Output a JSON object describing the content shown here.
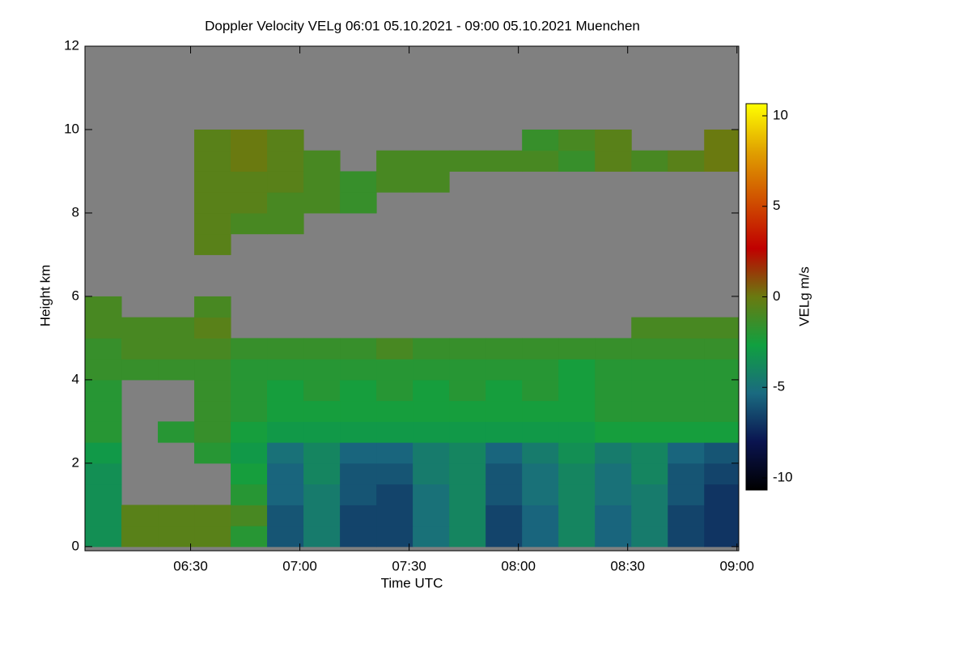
{
  "chart_data": {
    "type": "heatmap",
    "title": "Doppler Velocity VELg   06:01 05.10.2021 - 09:00 05.10.2021 Muenchen",
    "x_label": "Time UTC",
    "y_label": "Height km",
    "colorbar_label": "VELg m/s",
    "x": [
      366,
      376,
      386,
      396,
      406,
      416,
      426,
      436,
      446,
      456,
      466,
      476,
      486,
      496,
      506,
      516,
      526,
      536
    ],
    "y": [
      0.25,
      0.75,
      1.25,
      1.75,
      2.25,
      2.75,
      3.25,
      3.75,
      4.25,
      4.75,
      5.25,
      5.75,
      6.25,
      6.75,
      7.25,
      7.75,
      8.25,
      8.75,
      9.25,
      9.75,
      10.25,
      10.75,
      11.25,
      11.75
    ],
    "values": [
      [
        -3.5,
        -0.5,
        -0.5,
        -0.5,
        -2,
        -6,
        -4.5,
        -6.5,
        -6.5,
        -5,
        -4,
        -6.5,
        -5.5,
        -4,
        -5.5,
        -4.5,
        -6.5,
        -7
      ],
      [
        -3.5,
        -0.5,
        -0.5,
        -0.5,
        -1,
        -6,
        -4.5,
        -6.5,
        -6.5,
        -5,
        -4,
        -6.5,
        -5.5,
        -4,
        -5.5,
        -4.5,
        -6.5,
        -7
      ],
      [
        -3.5,
        null,
        null,
        null,
        -2,
        -5.5,
        -4.5,
        -6,
        -6.5,
        -5,
        -4,
        -6,
        -5,
        -4,
        -5,
        -4.5,
        -6,
        -7
      ],
      [
        -3.5,
        null,
        null,
        null,
        -2.5,
        -5.5,
        -4,
        -6,
        -6,
        -4.5,
        -4,
        -6,
        -5,
        -4,
        -5,
        -4,
        -6,
        -6.5
      ],
      [
        -3,
        null,
        null,
        -2,
        -3,
        -5,
        -4,
        -5.5,
        -5.5,
        -4.5,
        -4,
        -5.5,
        -4.5,
        -3.5,
        -4.5,
        -4,
        -5.5,
        -6
      ],
      [
        -2,
        null,
        -2,
        -1.5,
        -2.5,
        -3,
        -3,
        -3,
        -3,
        -3,
        -3,
        -3,
        -3,
        -3,
        -2.5,
        -2.5,
        -2.5,
        -2.5
      ],
      [
        -2,
        null,
        null,
        -1.5,
        -2,
        -2.5,
        -2.5,
        -2.5,
        -2.5,
        -2.5,
        -2.5,
        -2.5,
        -2.5,
        -2.5,
        -2,
        -2,
        -2,
        -2
      ],
      [
        -2,
        null,
        null,
        -1.5,
        -2,
        -2.5,
        -2,
        -2.5,
        -2,
        -2.5,
        -2,
        -2.5,
        -2,
        -2.5,
        -2,
        -2,
        -2,
        -2
      ],
      [
        -1.5,
        -1.5,
        -1.5,
        -1.5,
        -2,
        -2,
        -2,
        -2,
        -2,
        -2,
        -2,
        -2,
        -2,
        -2.5,
        -2,
        -2,
        -2,
        -2
      ],
      [
        -1.5,
        -1,
        -1,
        -1,
        -1.5,
        -1.5,
        -1.5,
        -1.5,
        -1,
        -1.5,
        -1.5,
        -1.5,
        -1.5,
        -1.5,
        -1.5,
        -1.5,
        -1.5,
        -1.5
      ],
      [
        -1,
        -1,
        -1,
        -0.5,
        null,
        null,
        null,
        null,
        null,
        null,
        null,
        null,
        null,
        null,
        null,
        -1,
        -1,
        -1
      ],
      [
        -1,
        null,
        null,
        -1,
        null,
        null,
        null,
        null,
        null,
        null,
        null,
        null,
        null,
        null,
        null,
        null,
        null,
        null
      ],
      [
        null,
        null,
        null,
        null,
        null,
        null,
        null,
        null,
        null,
        null,
        null,
        null,
        null,
        null,
        null,
        null,
        null,
        null
      ],
      [
        null,
        null,
        null,
        null,
        null,
        null,
        null,
        null,
        null,
        null,
        null,
        null,
        null,
        null,
        null,
        null,
        null,
        null
      ],
      [
        null,
        null,
        null,
        -0.5,
        null,
        null,
        null,
        null,
        null,
        null,
        null,
        null,
        null,
        null,
        null,
        null,
        null,
        null
      ],
      [
        null,
        null,
        null,
        -0.5,
        -1,
        -1,
        null,
        null,
        null,
        null,
        null,
        null,
        null,
        null,
        null,
        null,
        null,
        null
      ],
      [
        null,
        null,
        null,
        -0.5,
        -0.5,
        -1,
        -1,
        -1.5,
        null,
        null,
        null,
        null,
        null,
        null,
        null,
        null,
        null,
        null
      ],
      [
        null,
        null,
        null,
        -0.5,
        -0.5,
        -0.5,
        -1,
        -1.5,
        -1,
        -1,
        null,
        null,
        null,
        null,
        null,
        null,
        null,
        null
      ],
      [
        null,
        null,
        null,
        -0.5,
        0,
        -0.5,
        -1,
        null,
        -1,
        -1,
        -1,
        -1,
        -1,
        -1.5,
        -0.5,
        -1,
        -0.5,
        0
      ],
      [
        null,
        null,
        null,
        -0.5,
        0,
        -0.5,
        null,
        null,
        null,
        null,
        null,
        null,
        -1.5,
        -1,
        -0.5,
        null,
        null,
        0
      ],
      [
        null,
        null,
        null,
        null,
        null,
        null,
        null,
        null,
        null,
        null,
        null,
        null,
        null,
        null,
        null,
        null,
        null,
        null
      ],
      [
        null,
        null,
        null,
        null,
        null,
        null,
        null,
        null,
        null,
        null,
        null,
        null,
        null,
        null,
        null,
        null,
        null,
        null
      ],
      [
        null,
        null,
        null,
        null,
        null,
        null,
        null,
        null,
        null,
        null,
        null,
        null,
        null,
        null,
        null,
        null,
        null,
        null
      ],
      [
        null,
        null,
        null,
        null,
        null,
        null,
        null,
        null,
        null,
        null,
        null,
        null,
        null,
        null,
        null,
        null,
        null,
        null
      ]
    ],
    "xlim": [
      361,
      540.5
    ],
    "xticks": [
      {
        "value": 390,
        "label": "06:30"
      },
      {
        "value": 420,
        "label": "07:00"
      },
      {
        "value": 450,
        "label": "07:30"
      },
      {
        "value": 480,
        "label": "08:00"
      },
      {
        "value": 510,
        "label": "08:30"
      },
      {
        "value": 540,
        "label": "09:00"
      }
    ],
    "ylim": [
      -0.1,
      12
    ],
    "yticks": [
      0,
      2,
      4,
      6,
      8,
      10,
      12
    ],
    "clim": [
      -10.67,
      10.67
    ],
    "cticks": [
      -10,
      -5,
      0,
      5,
      10
    ],
    "colormap": [
      "#000000",
      "#0a1450",
      "#1a6a80",
      "#10a040",
      "#6a7a10",
      "#c00000",
      "#d05000",
      "#e0a000",
      "#ffff00"
    ],
    "missing_color": "#808080"
  }
}
